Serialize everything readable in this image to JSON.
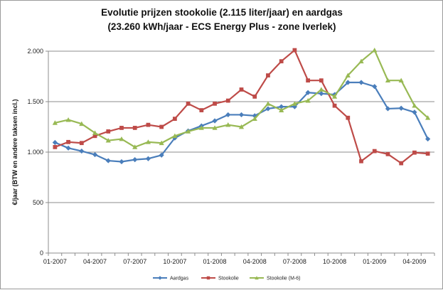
{
  "chart_data": {
    "type": "line",
    "title": "Evolutie prijzen stookolie (2.115 liter/jaar) en aardgas",
    "subtitle": "(23.260 kWh/jaar - ECS Energy Plus - zone Iverlek)",
    "ylabel": "€/jaar (BTW en andere taksen incl.)",
    "xlabel": "",
    "ylim": [
      0,
      2000
    ],
    "yticks": [
      0,
      500,
      1000,
      1500,
      2000
    ],
    "ytick_labels": [
      "0",
      "500",
      "1.000",
      "1.500",
      "2.000"
    ],
    "x_tick_labels": [
      "01-2007",
      "04-2007",
      "07-2007",
      "10-2007",
      "01-2008",
      "04-2008",
      "07-2008",
      "10-2008",
      "01-2009",
      "04-2009"
    ],
    "x": [
      "01-2007",
      "02-2007",
      "03-2007",
      "04-2007",
      "05-2007",
      "06-2007",
      "07-2007",
      "08-2007",
      "09-2007",
      "10-2007",
      "11-2007",
      "12-2007",
      "01-2008",
      "02-2008",
      "03-2008",
      "04-2008",
      "05-2008",
      "06-2008",
      "07-2008",
      "08-2008",
      "09-2008",
      "10-2008",
      "11-2008",
      "12-2008",
      "01-2009",
      "02-2009",
      "03-2009",
      "04-2009",
      "05-2009"
    ],
    "grid": "horizontal",
    "legend_position": "bottom",
    "series": [
      {
        "name": "Aardgas",
        "color": "#4a7ebb",
        "marker": "diamond",
        "values": [
          1095,
          1040,
          1010,
          975,
          915,
          905,
          925,
          935,
          970,
          1140,
          1210,
          1260,
          1310,
          1370,
          1370,
          1360,
          1430,
          1450,
          1450,
          1590,
          1580,
          1570,
          1690,
          1690,
          1650,
          1430,
          1435,
          1395,
          1130
        ]
      },
      {
        "name": "Stookolie",
        "color": "#be4b48",
        "marker": "square",
        "values": [
          1050,
          1100,
          1090,
          1160,
          1205,
          1240,
          1240,
          1270,
          1250,
          1330,
          1480,
          1415,
          1480,
          1510,
          1620,
          1550,
          1760,
          1900,
          2010,
          1710,
          1710,
          1460,
          1340,
          910,
          1010,
          980,
          890,
          995,
          985
        ]
      },
      {
        "name": "Stookolie (M-6)",
        "color": "#98b954",
        "marker": "triangle",
        "values": [
          1290,
          1320,
          1280,
          1190,
          1115,
          1130,
          1050,
          1100,
          1090,
          1160,
          1205,
          1240,
          1240,
          1270,
          1250,
          1330,
          1480,
          1415,
          1480,
          1510,
          1620,
          1550,
          1760,
          1900,
          2010,
          1710,
          1710,
          1460,
          1340
        ]
      }
    ]
  }
}
